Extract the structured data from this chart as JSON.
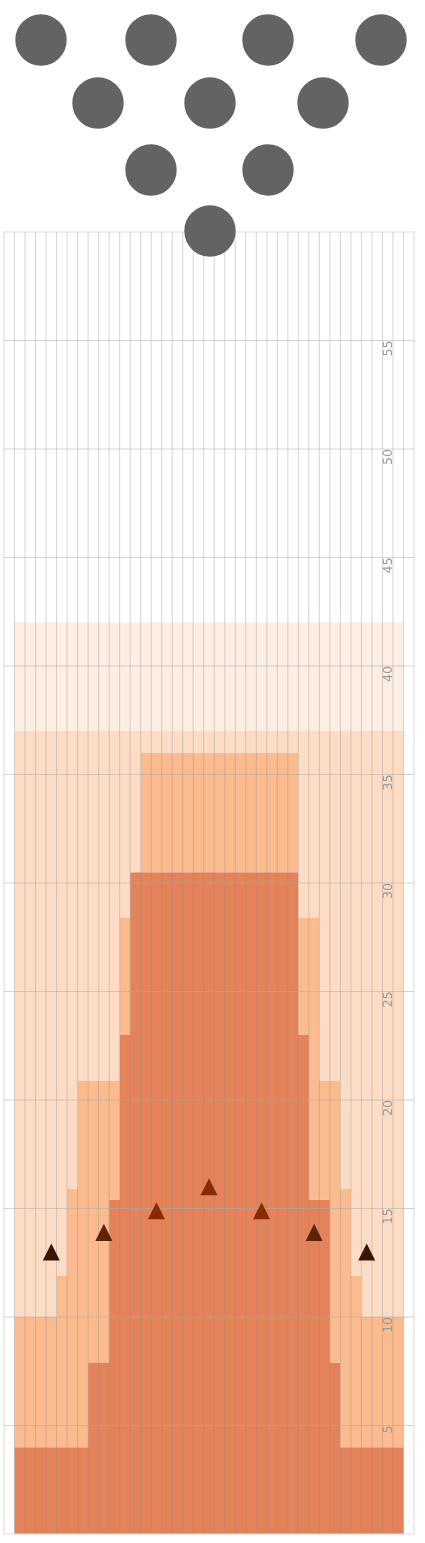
{
  "chart_data": {
    "type": "area",
    "stacked": true,
    "categories": [
      null,
      null,
      null,
      null,
      null,
      null,
      null,
      null,
      null,
      null,
      null,
      null,
      null,
      null,
      null,
      null,
      null,
      null,
      null,
      null,
      null,
      null,
      null,
      null,
      null,
      null,
      null,
      null,
      null,
      null,
      null,
      null,
      null,
      null,
      null,
      null,
      null,
      null,
      null
    ],
    "series": [
      {
        "color": "#e4835a",
        "values": [
          0,
          4,
          4,
          4,
          4,
          4,
          4,
          4,
          7.9,
          7.9,
          15.4,
          23,
          30.5,
          30.5,
          30.5,
          30.5,
          30.5,
          30.5,
          30.5,
          30.5,
          30.5,
          30.5,
          30.5,
          30.5,
          30.5,
          30.5,
          30.5,
          30.5,
          23,
          15.4,
          15.4,
          7.9,
          4,
          4,
          4,
          4,
          4,
          4,
          0
        ]
      },
      {
        "color": "#fbbb8f",
        "values": [
          0,
          6,
          6,
          6,
          6,
          7.9,
          11.9,
          16.9,
          13,
          13,
          5.5,
          5.4,
          0,
          5.5,
          5.5,
          5.5,
          5.5,
          5.5,
          5.5,
          5.5,
          5.5,
          5.5,
          5.5,
          5.5,
          5.5,
          5.5,
          5.5,
          5.5,
          5.4,
          13,
          5.5,
          13,
          11.9,
          7.9,
          6,
          6,
          6,
          6,
          0
        ]
      },
      {
        "color": "#fddcc6",
        "values": [
          0,
          27,
          27,
          27,
          27,
          25.1,
          21.1,
          16.1,
          16.1,
          16.1,
          16.1,
          8.6,
          6.5,
          1,
          1,
          1,
          1,
          1,
          1,
          1,
          1,
          1,
          1,
          1,
          1,
          1,
          1,
          1,
          8.6,
          8.6,
          16.1,
          16.1,
          21.1,
          25.1,
          27,
          27,
          27,
          27,
          0
        ]
      },
      {
        "color": "#fdeee4",
        "values": [
          0,
          5,
          5,
          5,
          5,
          5,
          5,
          5,
          5,
          5,
          5,
          5,
          5,
          5,
          5,
          5,
          5,
          5,
          5,
          5,
          5,
          5,
          5,
          5,
          5,
          5,
          5,
          5,
          5,
          5,
          5,
          5,
          5,
          5,
          5,
          5,
          5,
          5,
          0
        ]
      },
      {
        "type": "scatter",
        "marker": "triangle",
        "values": [
          null,
          null,
          null,
          null,
          13,
          null,
          null,
          null,
          null,
          13.9,
          null,
          null,
          null,
          null,
          14.9,
          null,
          null,
          null,
          null,
          16,
          null,
          null,
          null,
          null,
          14.9,
          null,
          null,
          null,
          null,
          13.9,
          null,
          null,
          null,
          null,
          13,
          null,
          null,
          null,
          null
        ],
        "colors": [
          null,
          null,
          null,
          null,
          "#3a1505",
          null,
          null,
          null,
          null,
          "#5c2308",
          null,
          null,
          null,
          null,
          "#8a2a05",
          null,
          null,
          null,
          null,
          "#8a2a05",
          null,
          null,
          null,
          null,
          "#8a2a05",
          null,
          null,
          null,
          null,
          "#5c2308",
          null,
          null,
          null,
          null,
          "#3a1505",
          null,
          null,
          null,
          null
        ]
      }
    ],
    "ylim": [
      0,
      60
    ],
    "yticks": [
      5,
      10,
      15,
      20,
      25,
      30,
      35,
      40,
      45,
      50,
      55
    ],
    "grid": true,
    "tick_labels": "y"
  }
}
